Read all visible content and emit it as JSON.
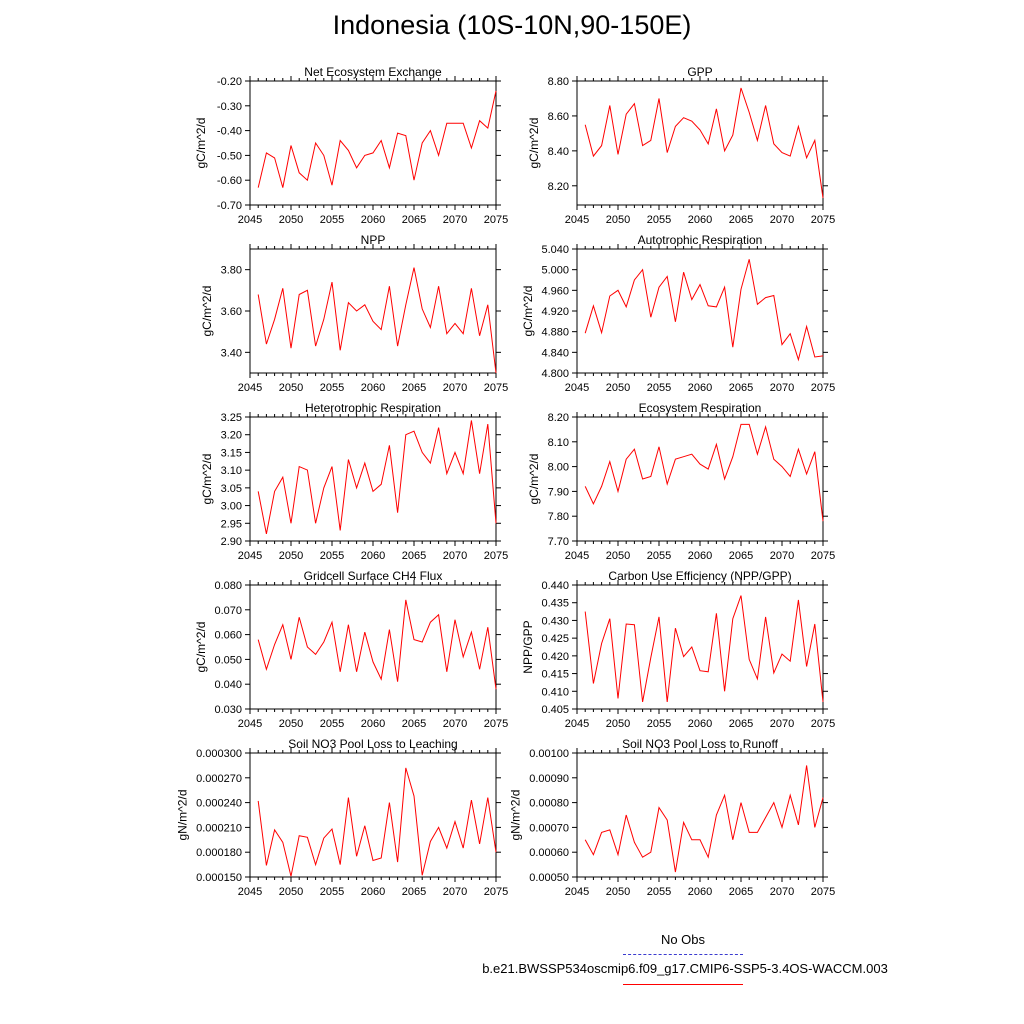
{
  "title": "Indonesia (10S-10N,90-150E)",
  "colors": {
    "series": "#ff0000",
    "axis": "#000000",
    "obs": "#3b3bd0"
  },
  "legend": {
    "obs_label": "No Obs",
    "case_label": "b.e21.BWSSP534oscmip6.f09_g17.CMIP6-SSP5-3.4OS-WACCM.003"
  },
  "chart_data": [
    {
      "type": "line",
      "title": "Net Ecosystem Exchange",
      "ylabel": "gC/m^2/d",
      "xlim": [
        2045,
        2075
      ],
      "ylim": [
        -0.7,
        -0.2
      ],
      "yticks": [
        -0.7,
        -0.6,
        -0.5,
        -0.4,
        -0.3,
        -0.2
      ],
      "ytick_labels": [
        "-0.70",
        "-0.60",
        "-0.50",
        "-0.40",
        "-0.30",
        "-0.20"
      ],
      "xticks": [
        2045,
        2050,
        2055,
        2060,
        2065,
        2070,
        2075
      ],
      "xtick_labels": [
        "2045",
        "2050",
        "2055",
        "2060",
        "2065",
        "2070",
        "2075"
      ],
      "x": [
        2046,
        2047,
        2048,
        2049,
        2050,
        2051,
        2052,
        2053,
        2054,
        2055,
        2056,
        2057,
        2058,
        2059,
        2060,
        2061,
        2062,
        2063,
        2064,
        2065,
        2066,
        2067,
        2068,
        2069,
        2070,
        2071,
        2072,
        2073,
        2074,
        2075
      ],
      "values": [
        -0.63,
        -0.49,
        -0.51,
        -0.63,
        -0.46,
        -0.57,
        -0.6,
        -0.45,
        -0.5,
        -0.62,
        -0.44,
        -0.48,
        -0.55,
        -0.5,
        -0.49,
        -0.44,
        -0.55,
        -0.41,
        -0.42,
        -0.6,
        -0.45,
        -0.4,
        -0.5,
        -0.37,
        -0.37,
        -0.37,
        -0.47,
        -0.36,
        -0.39,
        -0.24
      ]
    },
    {
      "type": "line",
      "title": "GPP",
      "ylabel": "gC/m^2/d",
      "xlim": [
        2045,
        2075
      ],
      "ylim": [
        8.09,
        8.8
      ],
      "yticks": [
        8.2,
        8.4,
        8.6,
        8.8
      ],
      "ytick_labels": [
        "8.20",
        "8.40",
        "8.60",
        "8.80"
      ],
      "xticks": [
        2045,
        2050,
        2055,
        2060,
        2065,
        2070,
        2075
      ],
      "xtick_labels": [
        "2045",
        "2050",
        "2055",
        "2060",
        "2065",
        "2070",
        "2075"
      ],
      "x": [
        2046,
        2047,
        2048,
        2049,
        2050,
        2051,
        2052,
        2053,
        2054,
        2055,
        2056,
        2057,
        2058,
        2059,
        2060,
        2061,
        2062,
        2063,
        2064,
        2065,
        2066,
        2067,
        2068,
        2069,
        2070,
        2071,
        2072,
        2073,
        2074,
        2075
      ],
      "values": [
        8.55,
        8.37,
        8.43,
        8.66,
        8.38,
        8.61,
        8.67,
        8.43,
        8.46,
        8.7,
        8.39,
        8.54,
        8.59,
        8.57,
        8.52,
        8.44,
        8.64,
        8.4,
        8.49,
        8.76,
        8.62,
        8.46,
        8.66,
        8.44,
        8.39,
        8.37,
        8.54,
        8.36,
        8.46,
        8.13
      ]
    },
    {
      "type": "line",
      "title": "NPP",
      "ylabel": "gC/m^2/d",
      "xlim": [
        2045,
        2075
      ],
      "ylim": [
        3.3,
        3.9
      ],
      "yticks": [
        3.4,
        3.6,
        3.8
      ],
      "ytick_labels": [
        "3.40",
        "3.60",
        "3.80"
      ],
      "xticks": [
        2045,
        2050,
        2055,
        2060,
        2065,
        2070,
        2075
      ],
      "xtick_labels": [
        "2045",
        "2050",
        "2055",
        "2060",
        "2065",
        "2070",
        "2075"
      ],
      "x": [
        2046,
        2047,
        2048,
        2049,
        2050,
        2051,
        2052,
        2053,
        2054,
        2055,
        2056,
        2057,
        2058,
        2059,
        2060,
        2061,
        2062,
        2063,
        2064,
        2065,
        2066,
        2067,
        2068,
        2069,
        2070,
        2071,
        2072,
        2073,
        2074,
        2075
      ],
      "values": [
        3.68,
        3.44,
        3.56,
        3.71,
        3.42,
        3.68,
        3.7,
        3.43,
        3.56,
        3.74,
        3.41,
        3.64,
        3.6,
        3.63,
        3.55,
        3.51,
        3.72,
        3.43,
        3.63,
        3.81,
        3.61,
        3.52,
        3.72,
        3.49,
        3.54,
        3.49,
        3.71,
        3.48,
        3.63,
        3.3
      ]
    },
    {
      "type": "line",
      "title": "Autotrophic Respiration",
      "ylabel": "gC/m^2/d",
      "xlim": [
        2045,
        2075
      ],
      "ylim": [
        4.8,
        5.04
      ],
      "yticks": [
        4.8,
        4.84,
        4.88,
        4.92,
        4.96,
        5.0,
        5.04
      ],
      "ytick_labels": [
        "4.800",
        "4.840",
        "4.880",
        "4.920",
        "4.960",
        "5.000",
        "5.040"
      ],
      "xticks": [
        2045,
        2050,
        2055,
        2060,
        2065,
        2070,
        2075
      ],
      "xtick_labels": [
        "2045",
        "2050",
        "2055",
        "2060",
        "2065",
        "2070",
        "2075"
      ],
      "x": [
        2046,
        2047,
        2048,
        2049,
        2050,
        2051,
        2052,
        2053,
        2054,
        2055,
        2056,
        2057,
        2058,
        2059,
        2060,
        2061,
        2062,
        2063,
        2064,
        2065,
        2066,
        2067,
        2068,
        2069,
        2070,
        2071,
        2072,
        2073,
        2074,
        2075
      ],
      "values": [
        4.877,
        4.93,
        4.878,
        4.949,
        4.96,
        4.928,
        4.98,
        5.0,
        4.908,
        4.966,
        4.987,
        4.899,
        4.995,
        4.942,
        4.971,
        4.93,
        4.928,
        4.966,
        4.85,
        4.962,
        5.02,
        4.933,
        4.946,
        4.95,
        4.855,
        4.876,
        4.826,
        4.89,
        4.831,
        4.833
      ]
    },
    {
      "type": "line",
      "title": "Heterotrophic Respiration",
      "ylabel": "gC/m^2/d",
      "xlim": [
        2045,
        2075
      ],
      "ylim": [
        2.9,
        3.25
      ],
      "yticks": [
        2.9,
        2.95,
        3.0,
        3.05,
        3.1,
        3.15,
        3.2,
        3.25
      ],
      "ytick_labels": [
        "2.90",
        "2.95",
        "3.00",
        "3.05",
        "3.10",
        "3.15",
        "3.20",
        "3.25"
      ],
      "xticks": [
        2045,
        2050,
        2055,
        2060,
        2065,
        2070,
        2075
      ],
      "xtick_labels": [
        "2045",
        "2050",
        "2055",
        "2060",
        "2065",
        "2070",
        "2075"
      ],
      "x": [
        2046,
        2047,
        2048,
        2049,
        2050,
        2051,
        2052,
        2053,
        2054,
        2055,
        2056,
        2057,
        2058,
        2059,
        2060,
        2061,
        2062,
        2063,
        2064,
        2065,
        2066,
        2067,
        2068,
        2069,
        2070,
        2071,
        2072,
        2073,
        2074,
        2075
      ],
      "values": [
        3.04,
        2.92,
        3.04,
        3.08,
        2.95,
        3.11,
        3.1,
        2.95,
        3.05,
        3.11,
        2.93,
        3.13,
        3.05,
        3.12,
        3.04,
        3.06,
        3.17,
        2.98,
        3.2,
        3.21,
        3.15,
        3.12,
        3.22,
        3.09,
        3.15,
        3.09,
        3.24,
        3.09,
        3.23,
        2.95
      ]
    },
    {
      "type": "line",
      "title": "Ecosystem Respiration",
      "ylabel": "gC/m^2/d",
      "xlim": [
        2045,
        2075
      ],
      "ylim": [
        7.7,
        8.2
      ],
      "yticks": [
        7.7,
        7.8,
        7.9,
        8.0,
        8.1,
        8.2
      ],
      "ytick_labels": [
        "7.70",
        "7.80",
        "7.90",
        "8.00",
        "8.10",
        "8.20"
      ],
      "xticks": [
        2045,
        2050,
        2055,
        2060,
        2065,
        2070,
        2075
      ],
      "xtick_labels": [
        "2045",
        "2050",
        "2055",
        "2060",
        "2065",
        "2070",
        "2075"
      ],
      "x": [
        2046,
        2047,
        2048,
        2049,
        2050,
        2051,
        2052,
        2053,
        2054,
        2055,
        2056,
        2057,
        2058,
        2059,
        2060,
        2061,
        2062,
        2063,
        2064,
        2065,
        2066,
        2067,
        2068,
        2069,
        2070,
        2071,
        2072,
        2073,
        2074,
        2075
      ],
      "values": [
        7.92,
        7.85,
        7.92,
        8.02,
        7.9,
        8.03,
        8.07,
        7.95,
        7.96,
        8.08,
        7.93,
        8.03,
        8.04,
        8.05,
        8.01,
        7.99,
        8.09,
        7.95,
        8.04,
        8.17,
        8.17,
        8.05,
        8.16,
        8.03,
        8.0,
        7.96,
        8.07,
        7.97,
        8.06,
        7.78
      ]
    },
    {
      "type": "line",
      "title": "Gridcell Surface CH4 Flux",
      "ylabel": "gC/m^2/d",
      "xlim": [
        2045,
        2075
      ],
      "ylim": [
        0.03,
        0.08
      ],
      "yticks": [
        0.03,
        0.04,
        0.05,
        0.06,
        0.07,
        0.08
      ],
      "ytick_labels": [
        "0.030",
        "0.040",
        "0.050",
        "0.060",
        "0.070",
        "0.080"
      ],
      "xticks": [
        2045,
        2050,
        2055,
        2060,
        2065,
        2070,
        2075
      ],
      "xtick_labels": [
        "2045",
        "2050",
        "2055",
        "2060",
        "2065",
        "2070",
        "2075"
      ],
      "x": [
        2046,
        2047,
        2048,
        2049,
        2050,
        2051,
        2052,
        2053,
        2054,
        2055,
        2056,
        2057,
        2058,
        2059,
        2060,
        2061,
        2062,
        2063,
        2064,
        2065,
        2066,
        2067,
        2068,
        2069,
        2070,
        2071,
        2072,
        2073,
        2074,
        2075
      ],
      "values": [
        0.058,
        0.046,
        0.056,
        0.064,
        0.05,
        0.067,
        0.055,
        0.052,
        0.057,
        0.065,
        0.045,
        0.064,
        0.045,
        0.061,
        0.049,
        0.042,
        0.062,
        0.041,
        0.074,
        0.058,
        0.057,
        0.065,
        0.068,
        0.045,
        0.066,
        0.051,
        0.061,
        0.046,
        0.063,
        0.038
      ]
    },
    {
      "type": "line",
      "title": "Carbon Use Efficiency (NPP/GPP)",
      "ylabel": "NPP/GPP",
      "xlim": [
        2045,
        2075
      ],
      "ylim": [
        0.405,
        0.44
      ],
      "yticks": [
        0.405,
        0.41,
        0.415,
        0.42,
        0.425,
        0.43,
        0.435,
        0.44
      ],
      "ytick_labels": [
        "0.405",
        "0.410",
        "0.415",
        "0.420",
        "0.425",
        "0.430",
        "0.435",
        "0.440"
      ],
      "xticks": [
        2045,
        2050,
        2055,
        2060,
        2065,
        2070,
        2075
      ],
      "xtick_labels": [
        "2045",
        "2050",
        "2055",
        "2060",
        "2065",
        "2070",
        "2075"
      ],
      "x": [
        2046,
        2047,
        2048,
        2049,
        2050,
        2051,
        2052,
        2053,
        2054,
        2055,
        2056,
        2057,
        2058,
        2059,
        2060,
        2061,
        2062,
        2063,
        2064,
        2065,
        2066,
        2067,
        2068,
        2069,
        2070,
        2071,
        2072,
        2073,
        2074,
        2075
      ],
      "values": [
        0.4325,
        0.4122,
        0.4235,
        0.4305,
        0.408,
        0.429,
        0.4288,
        0.407,
        0.4195,
        0.431,
        0.407,
        0.4278,
        0.4198,
        0.4225,
        0.4158,
        0.4155,
        0.432,
        0.41,
        0.4305,
        0.437,
        0.419,
        0.4135,
        0.431,
        0.4152,
        0.4205,
        0.4185,
        0.4358,
        0.417,
        0.429,
        0.407
      ]
    },
    {
      "type": "line",
      "title": "Soil NO3 Pool Loss to Leaching",
      "ylabel": "gN/m^2/d",
      "xlim": [
        2045,
        2075
      ],
      "ylim": [
        0.00015,
        0.0003
      ],
      "yticks": [
        0.00015,
        0.00018,
        0.00021,
        0.00024,
        0.00027,
        0.0003
      ],
      "ytick_labels": [
        "0.000150",
        "0.000180",
        "0.000210",
        "0.000240",
        "0.000270",
        "0.000300"
      ],
      "xticks": [
        2045,
        2050,
        2055,
        2060,
        2065,
        2070,
        2075
      ],
      "xtick_labels": [
        "2045",
        "2050",
        "2055",
        "2060",
        "2065",
        "2070",
        "2075"
      ],
      "x": [
        2046,
        2047,
        2048,
        2049,
        2050,
        2051,
        2052,
        2053,
        2054,
        2055,
        2056,
        2057,
        2058,
        2059,
        2060,
        2061,
        2062,
        2063,
        2064,
        2065,
        2066,
        2067,
        2068,
        2069,
        2070,
        2071,
        2072,
        2073,
        2074,
        2075
      ],
      "values": [
        0.000242,
        0.000164,
        0.000207,
        0.000192,
        0.000151,
        0.0002,
        0.000198,
        0.000165,
        0.000197,
        0.000208,
        0.000165,
        0.000246,
        0.000175,
        0.000212,
        0.00017,
        0.000173,
        0.00024,
        0.000168,
        0.000282,
        0.000248,
        0.000152,
        0.000193,
        0.00021,
        0.000185,
        0.000217,
        0.000185,
        0.000243,
        0.00019,
        0.000246,
        0.00018
      ]
    },
    {
      "type": "line",
      "title": "Soil NO3 Pool Loss to Runoff",
      "ylabel": "gN/m^2/d",
      "xlim": [
        2045,
        2075
      ],
      "ylim": [
        0.0005,
        0.001
      ],
      "yticks": [
        0.0005,
        0.0006,
        0.0007,
        0.0008,
        0.0009,
        0.001
      ],
      "ytick_labels": [
        "0.00050",
        "0.00060",
        "0.00070",
        "0.00080",
        "0.00090",
        "0.00100"
      ],
      "xticks": [
        2045,
        2050,
        2055,
        2060,
        2065,
        2070,
        2075
      ],
      "xtick_labels": [
        "2045",
        "2050",
        "2055",
        "2060",
        "2065",
        "2070",
        "2075"
      ],
      "x": [
        2046,
        2047,
        2048,
        2049,
        2050,
        2051,
        2052,
        2053,
        2054,
        2055,
        2056,
        2057,
        2058,
        2059,
        2060,
        2061,
        2062,
        2063,
        2064,
        2065,
        2066,
        2067,
        2068,
        2069,
        2070,
        2071,
        2072,
        2073,
        2074,
        2075
      ],
      "values": [
        0.00065,
        0.00059,
        0.00068,
        0.00069,
        0.00059,
        0.00075,
        0.00064,
        0.00058,
        0.0006,
        0.00078,
        0.00073,
        0.00052,
        0.00072,
        0.00065,
        0.00065,
        0.00058,
        0.00075,
        0.00083,
        0.00065,
        0.0008,
        0.00068,
        0.00068,
        0.00074,
        0.0008,
        0.0007,
        0.00083,
        0.00071,
        0.00095,
        0.0007,
        0.00082
      ]
    }
  ]
}
